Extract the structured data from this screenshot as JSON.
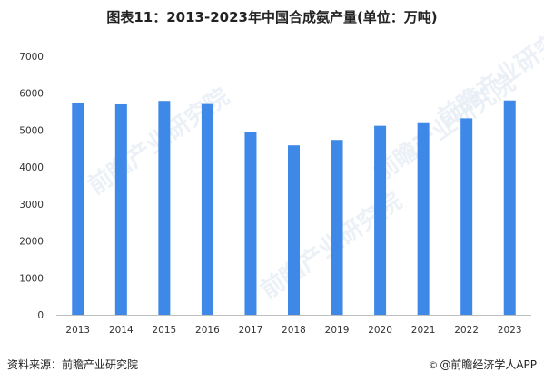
{
  "title": "图表11：2013-2023年中国合成氨产量(单位：万吨)",
  "watermark": {
    "text": "前瞻产业研究院"
  },
  "source_label": "资料来源：前瞻产业研究院",
  "credit": {
    "icon": "copyright-icon",
    "text": "@前瞻经济学人APP"
  },
  "colors": {
    "bar": "#3e88e8",
    "axis": "#bfbfbf",
    "text": "#333333"
  },
  "chart_data": {
    "type": "bar",
    "title": "图表11：2013-2023年中国合成氨产量(单位：万吨)",
    "xlabel": "",
    "ylabel": "",
    "unit": "万吨",
    "categories": [
      "2013",
      "2014",
      "2015",
      "2016",
      "2017",
      "2018",
      "2019",
      "2020",
      "2021",
      "2022",
      "2023"
    ],
    "values": [
      5745,
      5699,
      5791,
      5708,
      4946,
      4588,
      4735,
      5117,
      5189,
      5320,
      5803
    ],
    "ylim": [
      0,
      7000
    ],
    "yticks": [
      0,
      1000,
      2000,
      3000,
      4000,
      5000,
      6000,
      7000
    ],
    "grid": false,
    "legend": "none"
  }
}
